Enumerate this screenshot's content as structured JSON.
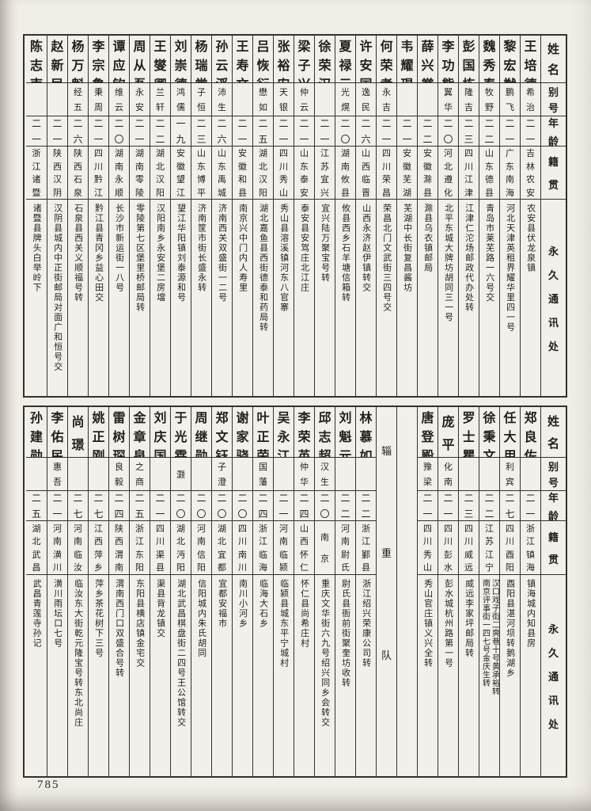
{
  "page_number": "785",
  "colors": {
    "paper": "#f0eee7",
    "line": "#35322e",
    "ink": "#221f1c"
  },
  "headers": {
    "name": "姓名",
    "alias": "别号",
    "age": "年龄",
    "native": "籍贯",
    "address": "永久通讯处"
  },
  "tables": [
    {
      "columns": [
        {
          "type": "person",
          "name": "王培德",
          "alias": "希治",
          "age": "二一",
          "native": "吉林农安",
          "address": "农安县伏龙泉镇"
        },
        {
          "type": "person",
          "name": "黎宏猷",
          "alias": "鹏飞",
          "age": "二一",
          "native": "广东南海",
          "address": "河北天津英租界耀华里四一号"
        },
        {
          "type": "person",
          "name": "魏秀春",
          "alias": "牧野",
          "age": "二二",
          "native": "山东德县",
          "address": "青岛市莱芜路一六号交"
        },
        {
          "type": "person",
          "name": "彭国栋",
          "alias": "隆吉",
          "age": "二三",
          "native": "四川江津",
          "address": "江津仁沱场邮政代办处转"
        },
        {
          "type": "person",
          "name": "李功熊",
          "alias": "翼华",
          "age": "二〇",
          "native": "河北遵化",
          "address": "北平东城大牌坊胡同三一号"
        },
        {
          "type": "person",
          "name": "薛兴黉",
          "alias": "",
          "age": "二二",
          "native": "安徽滁县",
          "address": "滁县乌衣镇邮局"
        },
        {
          "type": "person",
          "name": "韦耀琨",
          "alias": "",
          "age": "二一",
          "native": "安徽芜湖",
          "address": "芜湖中长街复昌酱坊"
        },
        {
          "type": "person",
          "name": "何荣孝",
          "alias": "永吉",
          "age": "二一",
          "native": "四川荣昌",
          "address": "荣昌北门文武街三四号交"
        },
        {
          "type": "person",
          "name": "许安国",
          "alias": "逸民",
          "age": "二六",
          "native": "山西临晋",
          "address": "山西永济赵伊镇转交"
        },
        {
          "type": "person",
          "name": "夏禄元",
          "alias": "光熀",
          "age": "二〇",
          "native": "湖南攸县",
          "address": "攸县西乡石羊塘信箱转"
        },
        {
          "type": "person",
          "name": "徐荣汉",
          "alias": "",
          "age": "二一",
          "native": "江苏宜兴",
          "address": "宜兴陆万聚宝号转"
        },
        {
          "type": "person",
          "name": "梁子兴",
          "alias": "仲云",
          "age": "二一",
          "native": "山东泰安",
          "address": "泰安县安驾庄北江庄"
        },
        {
          "type": "person",
          "name": "张裕安",
          "alias": "天银",
          "age": "二一",
          "native": "四川秀山",
          "address": "秀山县溶溪镇河东八官寨"
        },
        {
          "type": "person",
          "name": "吕恢衍",
          "alias": "懋如",
          "age": "二五",
          "native": "湖北汉阳",
          "address": "湖北嘉鱼县西街德泰和药局转"
        },
        {
          "type": "person",
          "name": "王寿文",
          "alias": "",
          "age": "二一",
          "native": "安徽和县",
          "address": "南京兴中门内人寿里"
        },
        {
          "type": "person",
          "name": "孙云浮",
          "alias": "沛生",
          "age": "二六",
          "native": "山东禹城",
          "address": "济南西关双盛街一二号"
        },
        {
          "type": "person",
          "name": "杨瑞常",
          "alias": "子恒",
          "age": "二三",
          "native": "山东博平",
          "address": "济南筐市街长盛永转"
        },
        {
          "type": "person",
          "name": "刘崇德",
          "alias": "鸿儒",
          "age": "一九",
          "native": "安徽望江",
          "address": "望江华阳镇刘泰源和号"
        },
        {
          "type": "person",
          "name": "王燮卿",
          "alias": "兰轩",
          "age": "二二",
          "native": "湖北汉阳",
          "address": "汉阳南乡永安堡二房壋"
        },
        {
          "type": "person",
          "name": "周从吾",
          "alias": "永安",
          "age": "二一",
          "native": "湖南零陵",
          "address": "零陵第七区堡里桥邮局转"
        },
        {
          "type": "person",
          "name": "谭应钦",
          "alias": "维云",
          "age": "二〇",
          "native": "湖南永顺",
          "address": "长沙市新运街一八号"
        },
        {
          "type": "person",
          "name": "李宗鲁",
          "alias": "秉周",
          "age": "二一",
          "native": "四川黔江",
          "address": "黔江县青冈乡益心田交"
        },
        {
          "type": "person",
          "name": "杨万魁",
          "alias": "经五",
          "age": "二六",
          "native": "陕西石泉",
          "address": "石泉县西关义顺福号转"
        },
        {
          "type": "person",
          "name": "赵新民",
          "alias": "",
          "age": "二一",
          "native": "陕西汉阴",
          "address": "汉阴县城内中正街邮局对面广和恒号交"
        },
        {
          "type": "person",
          "name": "陈志南",
          "alias": "",
          "age": "二一",
          "native": "浙江诸暨",
          "address": "诸暨县牌头白举岭下"
        }
      ]
    },
    {
      "columns": [
        {
          "type": "person",
          "name": "郑良佐",
          "alias": "",
          "age": "二一",
          "native": "浙江镇海",
          "address": "镇海城内知县房"
        },
        {
          "type": "person",
          "name": "任大用",
          "alias": "利宾",
          "age": "二七",
          "native": "四川酉阳",
          "address": "酉阳县湛河坝转鹅湖乡"
        },
        {
          "type": "person",
          "name": "徐秉文",
          "alias": "",
          "age": "二二",
          "native": "江苏江宁",
          "address": "汉口戏子街二爽巷十号黄承裕转\n南京评事街一四七号金庆生转"
        },
        {
          "type": "person",
          "name": "罗士瞿",
          "alias": "",
          "age": "二三",
          "native": "四川威远",
          "address": "威远李家坪邮局转"
        },
        {
          "type": "person",
          "name": "庞平",
          "alias": "化南",
          "age": "二一",
          "native": "四川彭水",
          "address": "彭水城杭州路第一号"
        },
        {
          "type": "person",
          "name": "唐登殿",
          "alias": "豫梁",
          "age": "二一",
          "native": "四川秀山",
          "address": "秀山官庄镇义兴全转"
        },
        {
          "type": "spacer"
        },
        {
          "type": "divider",
          "label": "辎重队"
        },
        {
          "type": "person",
          "name": "林慕如",
          "alias": "",
          "age": "二二",
          "native": "浙江鄞县",
          "address": "浙江绍兴荣康公司转"
        },
        {
          "type": "person",
          "name": "刘魁元",
          "alias": "",
          "age": "二二",
          "native": "河南尉氏",
          "address": "尉氏县衙前街聚奎坊收转"
        },
        {
          "type": "person",
          "name": "邱志超",
          "alias": "汉生",
          "age": "二〇",
          "native": "南京",
          "address": "重庆文华街六九号绍兴同乡会转交"
        },
        {
          "type": "person",
          "name": "李荣英",
          "alias": "仲华",
          "age": "二四",
          "native": "山西怀仁",
          "address": "怀仁县尚希庄村"
        },
        {
          "type": "person",
          "name": "吴永江",
          "alias": "",
          "age": "二一",
          "native": "河南临颍",
          "address": "临颍县城东平宁城村"
        },
        {
          "type": "person",
          "name": "叶正荣",
          "alias": "国藩",
          "age": "二四",
          "native": "浙江临海",
          "address": "临海大石乡"
        },
        {
          "type": "person",
          "name": "谢家骁",
          "alias": "",
          "age": "二〇",
          "native": "四川南川",
          "address": "南川小河乡"
        },
        {
          "type": "person",
          "name": "郑文钰",
          "alias": "子澄",
          "age": "二〇",
          "native": "湖北宜都",
          "address": "宜都安福市"
        },
        {
          "type": "person",
          "name": "周继勋",
          "alias": "",
          "age": "二〇",
          "native": "河南信阳",
          "address": "信阳城内朱氏胡同"
        },
        {
          "type": "person",
          "name": "于光霖",
          "alias": "灏",
          "age": "二〇",
          "native": "湖北沔阳",
          "address": "湖北武昌棋盘街二四号王公馆转交"
        },
        {
          "type": "person",
          "name": "刘庆国",
          "alias": "",
          "age": "二一",
          "native": "四川渠县",
          "address": "渠县背龙镇交"
        },
        {
          "type": "person",
          "name": "金章泉",
          "alias": "之商",
          "age": "二五",
          "native": "浙江东阳",
          "address": "东阳县横店镇金宅交"
        },
        {
          "type": "person",
          "name": "雷树琛",
          "alias": "良毅",
          "age": "二四",
          "native": "陕西渭南",
          "address": "渭南西门口双盛合号转"
        },
        {
          "type": "person",
          "name": "姚正刚",
          "alias": "",
          "age": "二七",
          "native": "江西萍乡",
          "address": "萍乡茶花树下三号"
        },
        {
          "type": "person",
          "name": "尚璟",
          "alias": "",
          "age": "二七",
          "native": "河南临汝",
          "address": "临汝东大街乾元隆宝号转东北尚庄"
        },
        {
          "type": "person",
          "name": "李佑民",
          "alias": "惠吾",
          "age": "二一",
          "native": "河南潢川",
          "address": "潢川雨坛口七号"
        },
        {
          "type": "person",
          "name": "孙建勋",
          "alias": "",
          "age": "二五",
          "native": "湖北武昌",
          "address": "武昌青莲寺孙记"
        }
      ]
    }
  ]
}
